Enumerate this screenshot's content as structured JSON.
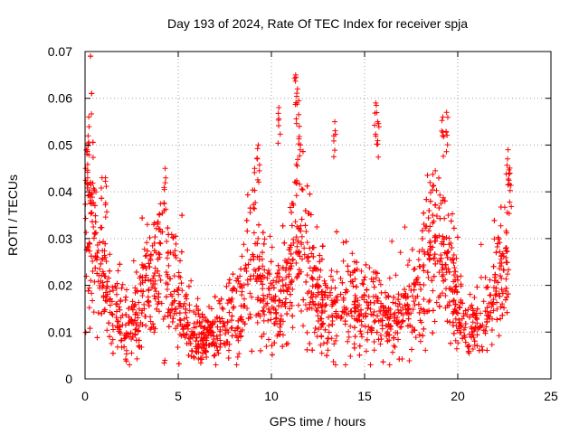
{
  "chart_data": {
    "type": "scatter",
    "title": "Day 193 of 2024, Rate Of TEC Index for receiver spja",
    "xlabel": "GPS time / hours",
    "ylabel": "ROTI / TECUs",
    "xlim": [
      0,
      25
    ],
    "ylim": [
      0,
      0.07
    ],
    "x_ticks": [
      0,
      5,
      10,
      15,
      20,
      25
    ],
    "y_ticks": [
      0,
      0.01,
      0.02,
      0.03,
      0.04,
      0.05,
      0.06,
      0.07
    ],
    "x_tick_labels": [
      "0",
      "5",
      "10",
      "15",
      "20",
      "25"
    ],
    "y_tick_labels": [
      "0",
      "0.01",
      "0.02",
      "0.03",
      "0.04",
      "0.05",
      "0.06",
      "0.07"
    ],
    "grid": true,
    "marker": "+",
    "color": "#ff0000",
    "series": [
      {
        "name": "ROTI",
        "profile": [
          [
            0.0,
            0.028
          ],
          [
            0.3,
            0.035
          ],
          [
            0.6,
            0.028
          ],
          [
            1.0,
            0.022
          ],
          [
            1.5,
            0.015
          ],
          [
            2.0,
            0.013
          ],
          [
            2.5,
            0.01
          ],
          [
            3.0,
            0.017
          ],
          [
            3.5,
            0.022
          ],
          [
            4.0,
            0.026
          ],
          [
            4.5,
            0.022
          ],
          [
            5.0,
            0.017
          ],
          [
            5.5,
            0.011
          ],
          [
            6.0,
            0.009
          ],
          [
            6.5,
            0.009
          ],
          [
            7.0,
            0.01
          ],
          [
            7.5,
            0.011
          ],
          [
            8.0,
            0.014
          ],
          [
            8.5,
            0.02
          ],
          [
            9.0,
            0.022
          ],
          [
            9.5,
            0.021
          ],
          [
            10.0,
            0.016
          ],
          [
            10.5,
            0.016
          ],
          [
            11.0,
            0.023
          ],
          [
            11.4,
            0.031
          ],
          [
            12.0,
            0.022
          ],
          [
            12.5,
            0.016
          ],
          [
            13.0,
            0.014
          ],
          [
            13.5,
            0.016
          ],
          [
            14.0,
            0.016
          ],
          [
            14.5,
            0.016
          ],
          [
            15.0,
            0.016
          ],
          [
            15.5,
            0.014
          ],
          [
            16.0,
            0.012
          ],
          [
            16.5,
            0.012
          ],
          [
            17.0,
            0.014
          ],
          [
            17.5,
            0.017
          ],
          [
            18.0,
            0.021
          ],
          [
            18.5,
            0.026
          ],
          [
            19.0,
            0.027
          ],
          [
            19.5,
            0.024
          ],
          [
            20.0,
            0.015
          ],
          [
            20.5,
            0.012
          ],
          [
            21.0,
            0.011
          ],
          [
            21.5,
            0.013
          ],
          [
            22.0,
            0.018
          ],
          [
            22.5,
            0.023
          ],
          [
            22.8,
            0.03
          ]
        ],
        "peaks": [
          [
            0.1,
            0.049
          ],
          [
            0.2,
            0.056
          ],
          [
            0.3,
            0.042
          ],
          [
            1.1,
            0.043
          ],
          [
            4.3,
            0.045
          ],
          [
            9.1,
            0.045
          ],
          [
            9.3,
            0.05
          ],
          [
            10.4,
            0.058
          ],
          [
            11.3,
            0.065
          ],
          [
            11.4,
            0.062
          ],
          [
            11.5,
            0.054
          ],
          [
            13.4,
            0.055
          ],
          [
            15.6,
            0.059
          ],
          [
            15.7,
            0.055
          ],
          [
            19.2,
            0.056
          ],
          [
            19.4,
            0.057
          ],
          [
            22.7,
            0.049
          ],
          [
            22.8,
            0.044
          ]
        ],
        "point_count": 2600
      }
    ]
  }
}
